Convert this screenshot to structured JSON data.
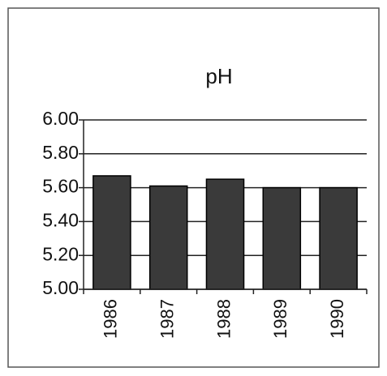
{
  "chart_data": {
    "type": "bar",
    "title": "pH",
    "categories": [
      "1986",
      "1987",
      "1988",
      "1989",
      "1990"
    ],
    "values": [
      5.67,
      5.61,
      5.65,
      5.6,
      5.6
    ],
    "color": "#3a3a3a",
    "ylim": [
      5,
      6
    ],
    "yticks": [
      {
        "value": 5,
        "label": "5.00"
      },
      {
        "value": 5.2,
        "label": "5.20"
      },
      {
        "value": 5.4,
        "label": "5.40"
      },
      {
        "value": 5.6,
        "label": "5.60"
      },
      {
        "value": 5.8,
        "label": "5.80"
      },
      {
        "value": 6,
        "label": "6.00"
      }
    ],
    "grid": true
  }
}
